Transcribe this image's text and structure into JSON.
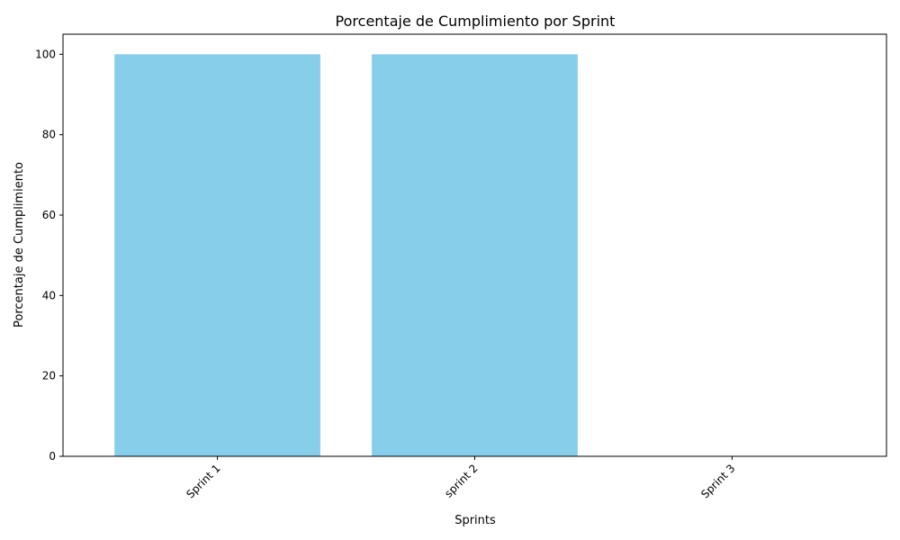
{
  "chart_data": {
    "type": "bar",
    "title": "Porcentaje de Cumplimiento por Sprint",
    "xlabel": "Sprints",
    "ylabel": "Porcentaje de Cumplimiento",
    "categories": [
      "Sprint 1",
      "sprint 2",
      "Sprint 3"
    ],
    "values": [
      100,
      100,
      0
    ],
    "ylim": [
      0,
      105
    ],
    "yticks": [
      0,
      20,
      40,
      60,
      80,
      100
    ],
    "grid": false,
    "bar_color": "#87CEEB",
    "axis_color": "#000000"
  }
}
